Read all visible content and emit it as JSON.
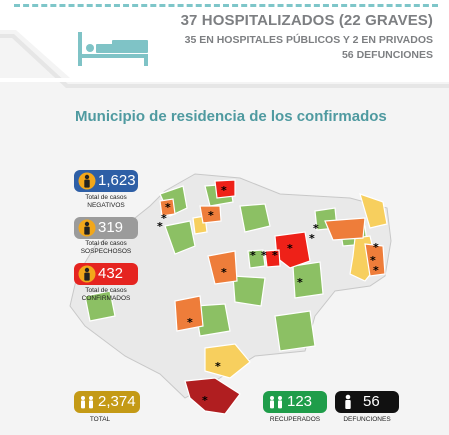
{
  "header": {
    "hospitalized_title": "37 HOSPITALIZADOS (22 GRAVES)",
    "hospitals_line": "35 EN HOSPITALES PÚBLICOS Y 2 EN PRIVADOS",
    "deaths_line": "56 DEFUNCIONES",
    "icon": "hospital-bed-icon"
  },
  "map": {
    "title": "Municipio de residencia de los confirmados",
    "marker": "*",
    "colors": {
      "green": "#8cc064",
      "yellow": "#f7cf5e",
      "orange": "#ee7d3a",
      "red": "#ee2118",
      "dark_red": "#b01e20",
      "gray": "#e9e9e9",
      "border": "#ffffff"
    }
  },
  "stats": {
    "negativos": {
      "value": "1,623",
      "caption_line1": "Total de casos",
      "caption_line2": "NEGATIVOS",
      "color": "#2e5fa6",
      "icon": "person-icon"
    },
    "sospechosos": {
      "value": "319",
      "caption_line1": "Total de casos",
      "caption_line2": "SOSPECHOSOS",
      "color": "#9b9b9b",
      "icon": "person-icon"
    },
    "confirmados": {
      "value": "432",
      "caption_line1": "Total de casos",
      "caption_line2": "CONFIRMADOS",
      "color": "#e52420",
      "icon": "person-icon"
    },
    "total": {
      "value": "2,374",
      "caption": "TOTAL",
      "color": "#c49a16",
      "icon": "people-icon"
    },
    "recuperados": {
      "value": "123",
      "caption": "RECUPERADOS",
      "color": "#1f9d4a",
      "icon": "people-icon"
    },
    "defunciones": {
      "value": "56",
      "caption": "DEFUNCIONES",
      "color": "#111111",
      "icon": "person-icon"
    }
  }
}
